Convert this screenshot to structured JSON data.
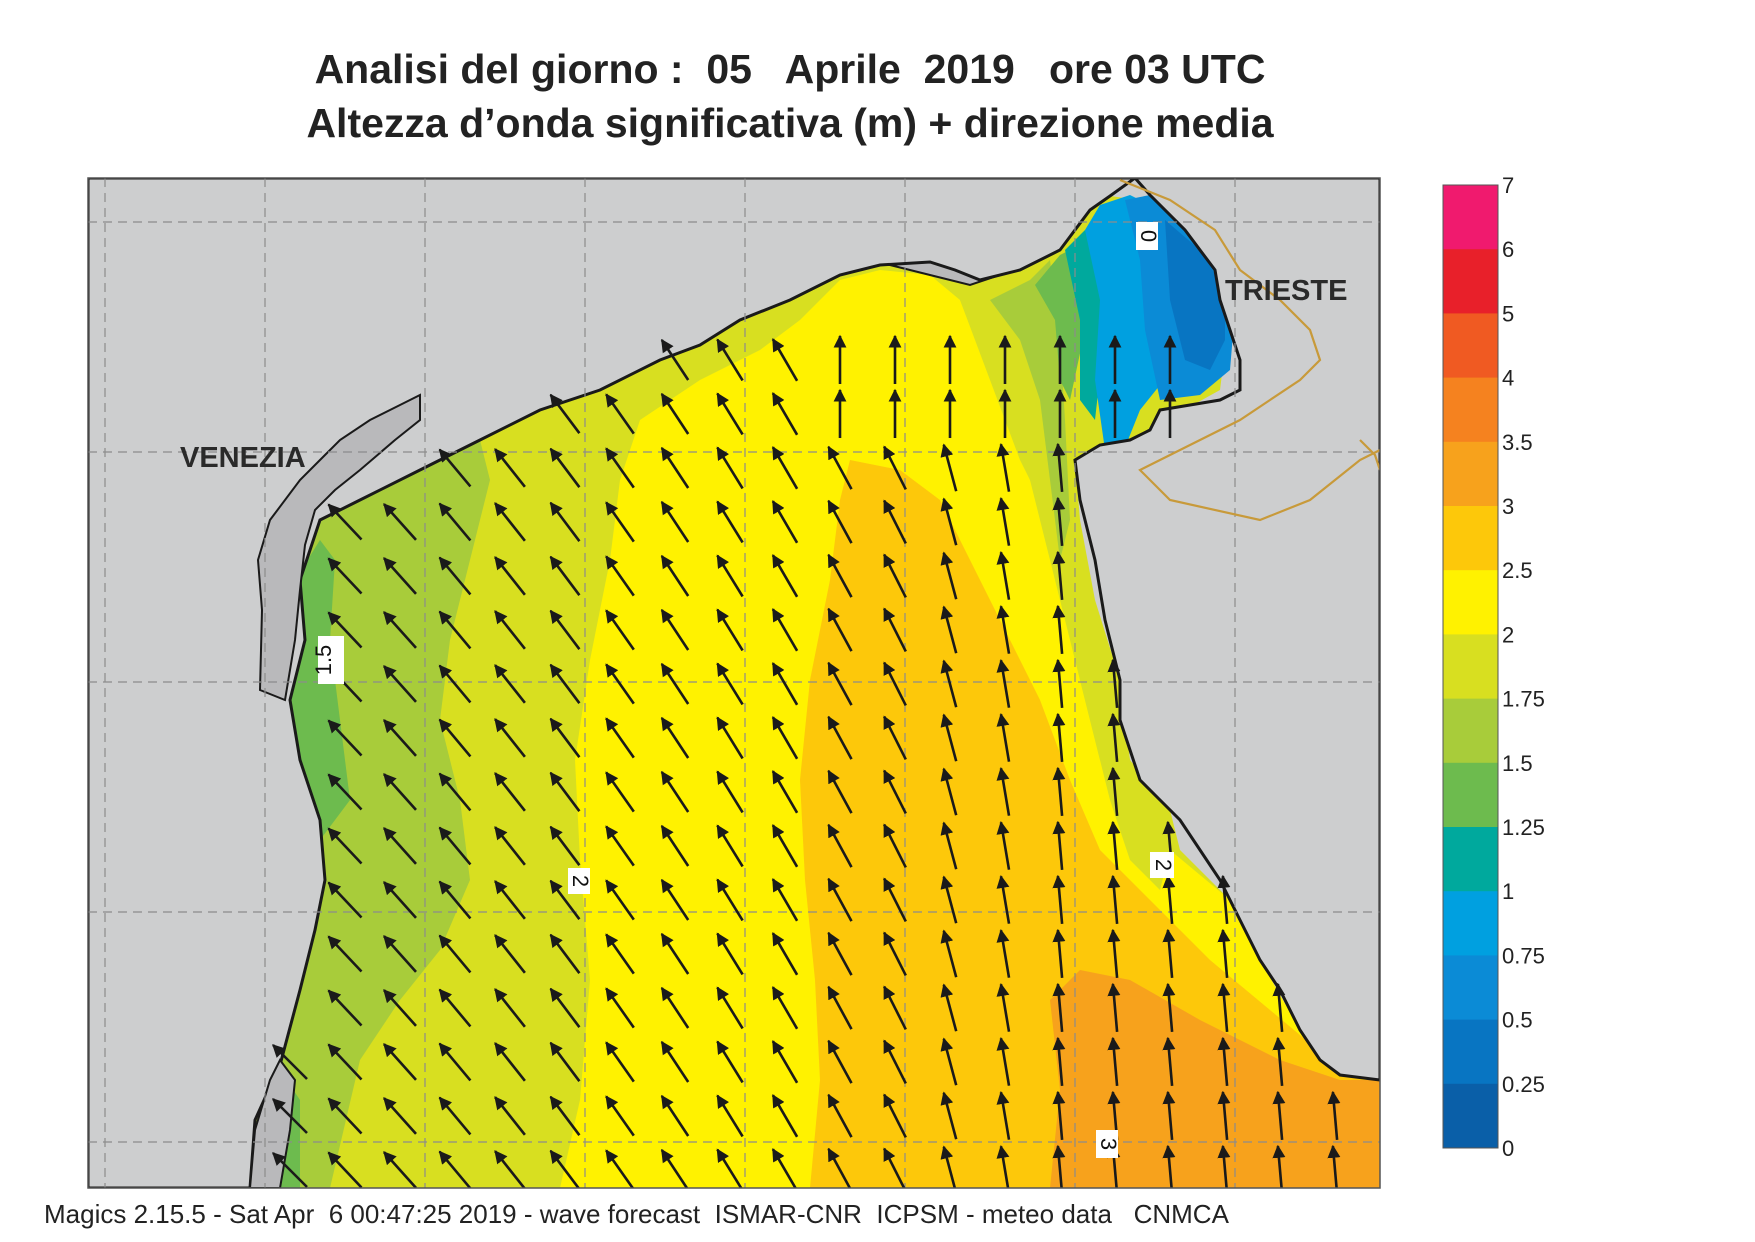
{
  "title_line1": "Analisi del giorno :  05   Aprile  2019   ore 03 UTC",
  "title_line2": "Altezza d’onda significativa (m) + direzione media",
  "footer": "Magics 2.15.5 - Sat Apr  6 00:47:25 2019 - wave forecast  ISMAR-CNR  ICPSM - meteo data   CNMCA",
  "cities": {
    "venezia": "VENEZIA",
    "trieste": "TRIESTE"
  },
  "contour_labels": {
    "l_1_5": "1.5",
    "l_2_west": "2",
    "l_2_east": "2",
    "l_3": "3",
    "l_0": "0"
  },
  "colorbar": {
    "labels": [
      "7",
      "6",
      "5",
      "4",
      "3.5",
      "3",
      "2.5",
      "2",
      "1.75",
      "1.5",
      "1.25",
      "1",
      "0.75",
      "0.5",
      "0.25",
      "0"
    ],
    "colors": [
      "#f01a6e",
      "#e8202a",
      "#f05a22",
      "#f5821f",
      "#f7a21c",
      "#fdc80a",
      "#fff200",
      "#d8df20",
      "#a8cc3a",
      "#6dbb4e",
      "#00a99d",
      "#00a0e0",
      "#0b8bd6",
      "#0875c2",
      "#0a5fa8"
    ]
  },
  "colors": {
    "land": "#cdcecf",
    "coast_shade": "#b9b9bb",
    "grid": "#8c8c8c",
    "border": "#c89a3a"
  }
}
